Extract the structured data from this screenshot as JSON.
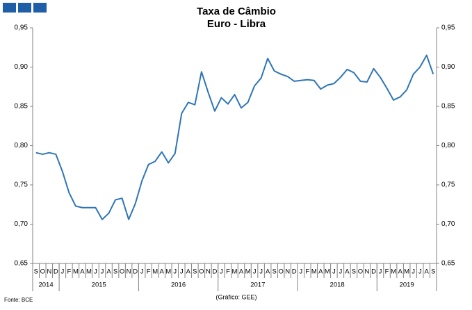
{
  "chart_data": {
    "type": "line",
    "title": "Taxa de Câmbio",
    "subtitle": "Euro - Libra",
    "source": "Fonte: BCE",
    "credit": "(Gráfico: GEE)",
    "categories": [
      "S",
      "O",
      "N",
      "D",
      "J",
      "F",
      "M",
      "A",
      "M",
      "J",
      "J",
      "A",
      "S",
      "O",
      "N",
      "D",
      "J",
      "F",
      "M",
      "A",
      "M",
      "J",
      "J",
      "A",
      "S",
      "O",
      "N",
      "D",
      "J",
      "F",
      "M",
      "A",
      "M",
      "J",
      "J",
      "A",
      "S",
      "O",
      "N",
      "D",
      "J",
      "F",
      "M",
      "A",
      "M",
      "J",
      "J",
      "A",
      "S",
      "O",
      "N",
      "D",
      "J",
      "F",
      "M",
      "A",
      "M",
      "J",
      "J",
      "A",
      "S"
    ],
    "years": [
      "2014",
      "2015",
      "2016",
      "2017",
      "2018",
      "2019"
    ],
    "series": [
      {
        "name": "Euro - Libra",
        "color": "#2e75b6",
        "values": [
          0.791,
          0.789,
          0.791,
          0.789,
          0.767,
          0.74,
          0.723,
          0.721,
          0.721,
          0.721,
          0.706,
          0.714,
          0.731,
          0.733,
          0.706,
          0.726,
          0.755,
          0.776,
          0.78,
          0.792,
          0.778,
          0.79,
          0.841,
          0.855,
          0.852,
          0.894,
          0.868,
          0.844,
          0.861,
          0.853,
          0.865,
          0.848,
          0.855,
          0.876,
          0.886,
          0.911,
          0.895,
          0.891,
          0.888,
          0.882,
          0.883,
          0.884,
          0.883,
          0.872,
          0.877,
          0.879,
          0.887,
          0.897,
          0.893,
          0.882,
          0.881,
          0.898,
          0.887,
          0.873,
          0.858,
          0.862,
          0.871,
          0.891,
          0.9,
          0.915,
          0.891
        ]
      }
    ],
    "ylim": [
      0.65,
      0.95
    ],
    "yticks": [
      {
        "value": 0.65,
        "label": "0,65"
      },
      {
        "value": 0.7,
        "label": "0,70"
      },
      {
        "value": 0.75,
        "label": "0,75"
      },
      {
        "value": 0.8,
        "label": "0,80"
      },
      {
        "value": 0.85,
        "label": "0,85"
      },
      {
        "value": 0.9,
        "label": "0,90"
      },
      {
        "value": 0.95,
        "label": "0,95"
      }
    ],
    "grid": false
  }
}
